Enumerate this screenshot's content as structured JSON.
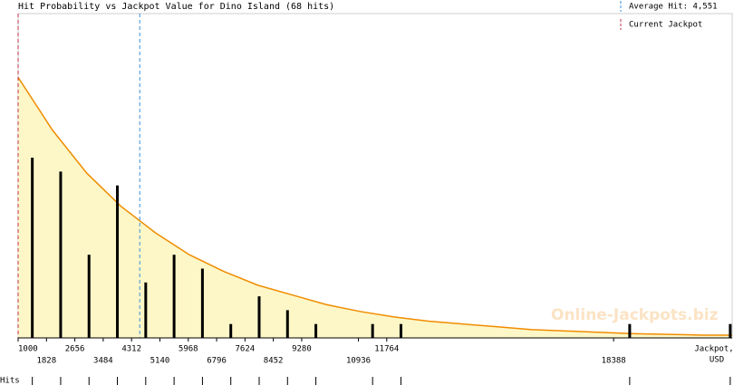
{
  "chart_data": {
    "type": "bar",
    "title": "Hit Probability vs Jackpot Value for Dino Island (68 hits)",
    "x_label": [
      "Jackpot,",
      "USD"
    ],
    "hits_label": "Hits",
    "watermark": "Online-Jackpots.biz",
    "legend": [
      {
        "name": "Average Hit: 4,551",
        "value": 4551,
        "color": "#3a8fd8"
      },
      {
        "name": "Current Jackpot",
        "value": 1000,
        "color": "#c0304a"
      }
    ],
    "x": [
      1414,
      2242,
      3070,
      3898,
      4726,
      5554,
      6382,
      7210,
      8038,
      8866,
      9694,
      11350,
      12178,
      18857,
      21793
    ],
    "values": [
      13,
      12,
      6,
      11,
      4,
      6,
      5,
      1,
      3,
      2,
      1,
      1,
      1,
      1,
      1
    ],
    "color": "#000000",
    "curve": {
      "color": "#f08c00",
      "fill": "#fdf7c8",
      "x": [
        1000,
        2000,
        3000,
        4000,
        5000,
        6000,
        7000,
        8000,
        9000,
        10000,
        11000,
        12000,
        13000,
        14000,
        15000,
        16000,
        17000,
        18000,
        19000,
        20000,
        21000,
        21850
      ],
      "values": [
        18.8,
        15.0,
        11.9,
        9.5,
        7.6,
        6.0,
        4.8,
        3.8,
        3.1,
        2.4,
        1.9,
        1.5,
        1.2,
        1.0,
        0.8,
        0.6,
        0.5,
        0.4,
        0.3,
        0.25,
        0.2,
        0.2
      ]
    },
    "xlim": [
      1000,
      21850
    ],
    "ylim": [
      0,
      23.4
    ],
    "xticks": [
      1000,
      1828,
      2656,
      3484,
      4312,
      5140,
      5968,
      6796,
      7624,
      8452,
      9280,
      10936,
      11764,
      18388
    ]
  }
}
